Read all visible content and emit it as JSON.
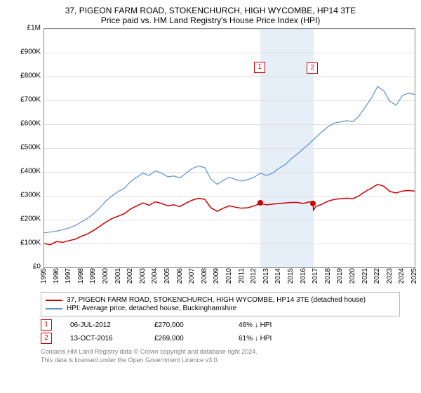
{
  "title_line1": "37, PIGEON FARM ROAD, STOKENCHURCH, HIGH WYCOMBE, HP14 3TE",
  "title_line2": "Price paid vs. HM Land Registry's House Price Index (HPI)",
  "chart": {
    "type": "line",
    "xlim": [
      1995,
      2025
    ],
    "ylim": [
      0,
      1000000
    ],
    "ytick_step": 100000,
    "ytick_labels": [
      "£0",
      "£100K",
      "£200K",
      "£300K",
      "£400K",
      "£500K",
      "£600K",
      "£700K",
      "£800K",
      "£900K",
      "£1M"
    ],
    "xtick_labels": [
      "1995",
      "1996",
      "1997",
      "1998",
      "1999",
      "2000",
      "2001",
      "2002",
      "2003",
      "2004",
      "2005",
      "2006",
      "2007",
      "2008",
      "2009",
      "2010",
      "2011",
      "2012",
      "2013",
      "2014",
      "2015",
      "2016",
      "2017",
      "2018",
      "2019",
      "2020",
      "2021",
      "2022",
      "2023",
      "2024",
      "2025"
    ],
    "grid_color": "#e0e0e0",
    "background_color": "#ffffff",
    "shade_color": "#e6eef8",
    "shade_range": [
      2012.5,
      2016.8
    ],
    "series": [
      {
        "name": "37, PIGEON FARM ROAD, STOKENCHURCH, HIGH WYCOMBE, HP14 3TE (detached house)",
        "color": "#cc0000",
        "width": 1.5,
        "points": [
          [
            1995,
            100000
          ],
          [
            1995.5,
            95000
          ],
          [
            1996,
            108000
          ],
          [
            1996.5,
            105000
          ],
          [
            1997,
            112000
          ],
          [
            1997.5,
            118000
          ],
          [
            1998,
            130000
          ],
          [
            1998.5,
            140000
          ],
          [
            1999,
            155000
          ],
          [
            1999.5,
            172000
          ],
          [
            2000,
            190000
          ],
          [
            2000.5,
            205000
          ],
          [
            2001,
            215000
          ],
          [
            2001.5,
            225000
          ],
          [
            2002,
            245000
          ],
          [
            2002.5,
            258000
          ],
          [
            2003,
            270000
          ],
          [
            2003.5,
            260000
          ],
          [
            2004,
            275000
          ],
          [
            2004.5,
            268000
          ],
          [
            2005,
            258000
          ],
          [
            2005.5,
            262000
          ],
          [
            2006,
            255000
          ],
          [
            2006.5,
            270000
          ],
          [
            2007,
            282000
          ],
          [
            2007.5,
            290000
          ],
          [
            2008,
            285000
          ],
          [
            2008.5,
            250000
          ],
          [
            2009,
            235000
          ],
          [
            2009.5,
            248000
          ],
          [
            2010,
            258000
          ],
          [
            2010.5,
            252000
          ],
          [
            2011,
            248000
          ],
          [
            2011.5,
            250000
          ],
          [
            2012,
            258000
          ],
          [
            2012.5,
            268000
          ],
          [
            2013,
            262000
          ],
          [
            2013.5,
            265000
          ],
          [
            2014,
            268000
          ],
          [
            2014.5,
            270000
          ],
          [
            2015,
            272000
          ],
          [
            2015.5,
            272000
          ],
          [
            2016,
            268000
          ],
          [
            2016.5,
            275000
          ],
          [
            2016.78,
            272000
          ],
          [
            2016.8,
            240000
          ],
          [
            2017,
            255000
          ],
          [
            2017.5,
            265000
          ],
          [
            2018,
            278000
          ],
          [
            2018.5,
            285000
          ],
          [
            2019,
            288000
          ],
          [
            2019.5,
            290000
          ],
          [
            2020,
            288000
          ],
          [
            2020.5,
            300000
          ],
          [
            2021,
            318000
          ],
          [
            2021.5,
            332000
          ],
          [
            2022,
            348000
          ],
          [
            2022.5,
            340000
          ],
          [
            2023,
            318000
          ],
          [
            2023.5,
            312000
          ],
          [
            2024,
            320000
          ],
          [
            2024.5,
            322000
          ],
          [
            2025,
            320000
          ]
        ]
      },
      {
        "name": "HPI: Average price, detached house, Buckinghamshire",
        "color": "#5b8fd6",
        "width": 1.2,
        "points": [
          [
            1995,
            145000
          ],
          [
            1995.5,
            148000
          ],
          [
            1996,
            152000
          ],
          [
            1996.5,
            158000
          ],
          [
            1997,
            165000
          ],
          [
            1997.5,
            175000
          ],
          [
            1998,
            190000
          ],
          [
            1998.5,
            205000
          ],
          [
            1999,
            225000
          ],
          [
            1999.5,
            250000
          ],
          [
            2000,
            278000
          ],
          [
            2000.5,
            300000
          ],
          [
            2001,
            318000
          ],
          [
            2001.5,
            332000
          ],
          [
            2002,
            360000
          ],
          [
            2002.5,
            378000
          ],
          [
            2003,
            395000
          ],
          [
            2003.5,
            385000
          ],
          [
            2004,
            405000
          ],
          [
            2004.5,
            395000
          ],
          [
            2005,
            380000
          ],
          [
            2005.5,
            383000
          ],
          [
            2006,
            375000
          ],
          [
            2006.5,
            395000
          ],
          [
            2007,
            415000
          ],
          [
            2007.5,
            425000
          ],
          [
            2008,
            418000
          ],
          [
            2008.5,
            370000
          ],
          [
            2009,
            348000
          ],
          [
            2009.5,
            365000
          ],
          [
            2010,
            378000
          ],
          [
            2010.5,
            368000
          ],
          [
            2011,
            362000
          ],
          [
            2011.5,
            368000
          ],
          [
            2012,
            378000
          ],
          [
            2012.5,
            395000
          ],
          [
            2013,
            385000
          ],
          [
            2013.5,
            395000
          ],
          [
            2014,
            415000
          ],
          [
            2014.5,
            430000
          ],
          [
            2015,
            455000
          ],
          [
            2015.5,
            475000
          ],
          [
            2016,
            498000
          ],
          [
            2016.5,
            520000
          ],
          [
            2017,
            545000
          ],
          [
            2017.5,
            568000
          ],
          [
            2018,
            590000
          ],
          [
            2018.5,
            605000
          ],
          [
            2019,
            610000
          ],
          [
            2019.5,
            615000
          ],
          [
            2020,
            610000
          ],
          [
            2020.5,
            635000
          ],
          [
            2021,
            672000
          ],
          [
            2021.5,
            710000
          ],
          [
            2022,
            758000
          ],
          [
            2022.5,
            740000
          ],
          [
            2023,
            695000
          ],
          [
            2023.5,
            680000
          ],
          [
            2024,
            720000
          ],
          [
            2024.5,
            730000
          ],
          [
            2025,
            725000
          ]
        ]
      }
    ],
    "markers": [
      {
        "num": "1",
        "x": 2012.51,
        "y": 270000
      },
      {
        "num": "2",
        "x": 2016.78,
        "y": 269000
      }
    ]
  },
  "legend": {
    "items": [
      {
        "color": "#cc0000",
        "label": "37, PIGEON FARM ROAD, STOKENCHURCH, HIGH WYCOMBE, HP14 3TE (detached house)"
      },
      {
        "color": "#5b8fd6",
        "label": "HPI: Average price, detached house, Buckinghamshire"
      }
    ]
  },
  "table": {
    "rows": [
      {
        "num": "1",
        "date": "06-JUL-2012",
        "price": "£270,000",
        "delta": "46% ↓ HPI"
      },
      {
        "num": "2",
        "date": "13-OCT-2016",
        "price": "£269,000",
        "delta": "61% ↓ HPI"
      }
    ]
  },
  "footer": {
    "line1": "Contains HM Land Registry data © Crown copyright and database right 2024.",
    "line2": "This data is licensed under the Open Government Licence v3.0."
  }
}
